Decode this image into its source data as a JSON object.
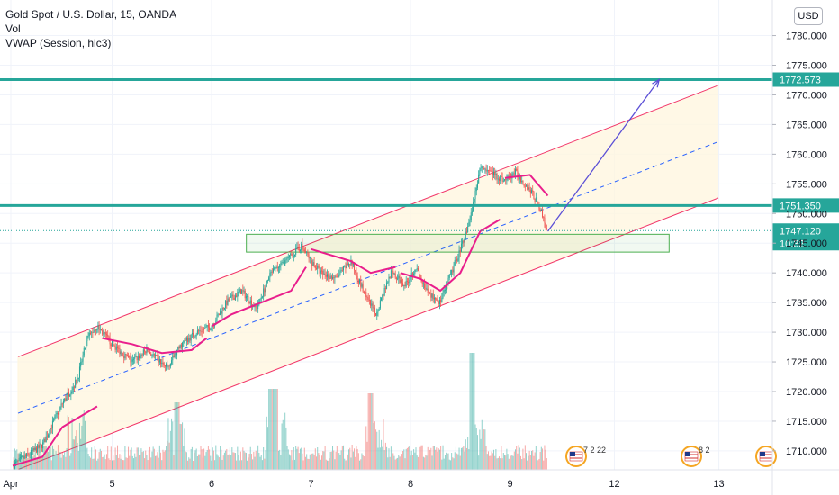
{
  "legend": {
    "title": "Gold Spot / U.S. Dollar, 15, OANDA",
    "vol": "Vol",
    "vwap": "VWAP (Session, hlc3)"
  },
  "currency_button": "USD",
  "colors": {
    "teal": "#26a69a",
    "channel": "#f23669",
    "channel_fill": "#fff6de",
    "vwap": "#e91e8c",
    "midline": "#2962ff",
    "arrow": "#5b4fd6",
    "box": "#4caf50",
    "up": "#26a69a",
    "down": "#ef5350"
  },
  "chart_data": {
    "type": "candlestick",
    "symbol": "Gold Spot / U.S. Dollar",
    "interval": "15",
    "source": "OANDA",
    "x_labels": [
      "Apr",
      "5",
      "6",
      "7",
      "8",
      "9",
      "12",
      "13"
    ],
    "y_ticks": [
      1710,
      1715,
      1720,
      1725,
      1730,
      1735,
      1740,
      1745,
      1750,
      1755,
      1760,
      1765,
      1770,
      1775,
      1780
    ],
    "y_tick_labels": [
      "1710.000",
      "1715.000",
      "1720.000",
      "1725.000",
      "1730.000",
      "1735.000",
      "1740.000",
      "1745.000",
      "1750.000",
      "1755.000",
      "1760.000",
      "1765.000",
      "1770.000",
      "1775.000",
      "1780.000"
    ],
    "ylim": [
      1706.8,
      1786
    ],
    "horizontal_levels": [
      {
        "value": 1772.573,
        "label": "1772.573"
      },
      {
        "value": 1751.35,
        "label": "1751.350"
      }
    ],
    "last_price": {
      "value": 1747.12,
      "label": "1747.120",
      "countdown": "10:32"
    },
    "event_labels": [
      "7 2 22",
      "8 2"
    ],
    "price_path": [
      [
        0.0,
        1707.5
      ],
      [
        0.3,
        1711
      ],
      [
        0.5,
        1718
      ],
      [
        0.65,
        1722
      ],
      [
        0.75,
        1729
      ],
      [
        0.85,
        1731
      ],
      [
        1.0,
        1728
      ],
      [
        1.2,
        1725
      ],
      [
        1.35,
        1727
      ],
      [
        1.55,
        1724
      ],
      [
        1.7,
        1728
      ],
      [
        1.85,
        1730
      ],
      [
        2.0,
        1731
      ],
      [
        2.15,
        1735
      ],
      [
        2.3,
        1737
      ],
      [
        2.45,
        1734
      ],
      [
        2.6,
        1740
      ],
      [
        2.75,
        1742
      ],
      [
        2.9,
        1744.5
      ],
      [
        3.0,
        1742
      ],
      [
        3.1,
        1740
      ],
      [
        3.25,
        1739
      ],
      [
        3.4,
        1742
      ],
      [
        3.55,
        1736
      ],
      [
        3.65,
        1733
      ],
      [
        3.8,
        1740
      ],
      [
        3.95,
        1738
      ],
      [
        4.05,
        1741
      ],
      [
        4.15,
        1737
      ],
      [
        4.3,
        1735
      ],
      [
        4.5,
        1744
      ],
      [
        4.6,
        1749
      ],
      [
        4.7,
        1758
      ],
      [
        4.8,
        1757
      ],
      [
        4.95,
        1755.5
      ],
      [
        5.05,
        1757
      ],
      [
        5.2,
        1754
      ],
      [
        5.3,
        1751
      ],
      [
        5.38,
        1747
      ]
    ],
    "vwap_sessions": [
      [
        [
          0.0,
          1707.5
        ],
        [
          0.3,
          1709
        ],
        [
          0.5,
          1714
        ],
        [
          0.6,
          1715
        ],
        [
          0.85,
          1717.5
        ]
      ],
      [
        [
          0.9,
          1729
        ],
        [
          1.2,
          1728
        ],
        [
          1.5,
          1726.5
        ],
        [
          1.8,
          1727
        ],
        [
          1.95,
          1729
        ]
      ],
      [
        [
          2.0,
          1731
        ],
        [
          2.2,
          1733
        ],
        [
          2.5,
          1735
        ],
        [
          2.8,
          1737
        ],
        [
          2.95,
          1741
        ]
      ],
      [
        [
          3.0,
          1744
        ],
        [
          3.2,
          1743
        ],
        [
          3.4,
          1742
        ],
        [
          3.6,
          1740
        ],
        [
          3.85,
          1741
        ]
      ],
      [
        [
          3.9,
          1740
        ],
        [
          4.1,
          1739
        ],
        [
          4.3,
          1737
        ],
        [
          4.5,
          1740
        ],
        [
          4.7,
          1747
        ],
        [
          4.9,
          1749
        ]
      ],
      [
        [
          4.95,
          1756
        ],
        [
          5.2,
          1756.5
        ],
        [
          5.38,
          1753
        ]
      ]
    ],
    "channel": {
      "upper": [
        [
          0.0,
          1725.5
        ],
        [
          8.0,
          1777.5
        ]
      ],
      "lower": [
        [
          0.0,
          1706.5
        ],
        [
          8.0,
          1758.5
        ]
      ],
      "mid": [
        [
          0.0,
          1716
        ],
        [
          8.0,
          1768
        ]
      ]
    },
    "zone": {
      "x0": 2.35,
      "x1": 6.6,
      "y_low": 1743.5,
      "y_high": 1746.5
    },
    "projection_arrow": [
      [
        5.38,
        1747
      ],
      [
        6.5,
        1772.573
      ]
    ]
  }
}
